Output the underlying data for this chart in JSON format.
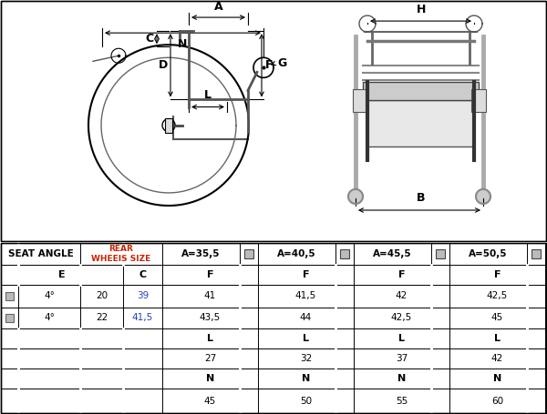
{
  "bg_color": "#ffffff",
  "line_color": "#000000",
  "gray_color": "#888888",
  "light_gray": "#cccccc",
  "red_color": "#cc2200",
  "blue_color": "#3355bb",
  "table_cols": [
    2,
    20,
    88,
    135,
    178,
    263,
    283,
    368,
    388,
    473,
    493,
    578,
    598
  ],
  "table_rows": [
    188,
    165,
    143,
    118,
    95,
    72,
    50,
    28,
    6
  ],
  "header1_texts": [
    "SEAT ANGLE",
    "REAR\nWHEEIS SIZE",
    "A=35,5",
    "A=40,5",
    "A=45,5",
    "A=50,5"
  ],
  "header2_texts": [
    "E",
    "C",
    "F",
    "F",
    "F",
    "F"
  ],
  "data_row1": [
    "4°",
    "20",
    "39",
    "41",
    "41,5",
    "42",
    "42,5"
  ],
  "data_row2": [
    "4°",
    "22",
    "41,5",
    "43,5",
    "44",
    "42,5",
    "45"
  ],
  "l_values": [
    "27",
    "32",
    "37",
    "42"
  ],
  "n_values": [
    "45",
    "50",
    "55",
    "60"
  ]
}
